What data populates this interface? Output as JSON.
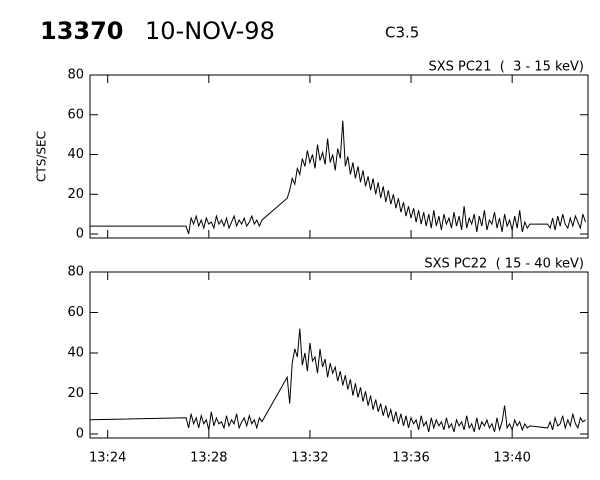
{
  "header": {
    "id": "13370",
    "date": "10-NOV-98",
    "class": "C3.5"
  },
  "chart_data": [
    {
      "type": "line",
      "title": "SXS PC21  (  3 - 15 keV)",
      "y_label": "CTS/SEC",
      "color": "#000000",
      "xlim": [
        803.3,
        823.0
      ],
      "xticks": [
        804,
        808,
        812,
        816,
        820
      ],
      "ylim": [
        -2,
        80
      ],
      "yticks": [
        0,
        20,
        40,
        60,
        80
      ],
      "x": [
        803.3,
        807.1,
        807.2,
        807.3,
        807.4,
        807.5,
        807.6,
        807.7,
        807.8,
        807.9,
        808.0,
        808.1,
        808.2,
        808.3,
        808.4,
        808.5,
        808.6,
        808.7,
        808.8,
        808.9,
        809.0,
        809.1,
        809.2,
        809.3,
        809.4,
        809.5,
        809.6,
        809.7,
        809.8,
        809.9,
        810.0,
        810.1,
        811.1,
        811.2,
        811.3,
        811.4,
        811.5,
        811.6,
        811.7,
        811.8,
        811.9,
        812.0,
        812.1,
        812.2,
        812.3,
        812.4,
        812.5,
        812.6,
        812.7,
        812.8,
        812.9,
        813.0,
        813.1,
        813.2,
        813.3,
        813.4,
        813.5,
        813.6,
        813.7,
        813.8,
        813.9,
        814.0,
        814.1,
        814.2,
        814.3,
        814.4,
        814.5,
        814.6,
        814.7,
        814.8,
        814.9,
        815.0,
        815.1,
        815.2,
        815.3,
        815.4,
        815.5,
        815.6,
        815.7,
        815.8,
        815.9,
        816.0,
        816.1,
        816.2,
        816.3,
        816.4,
        816.5,
        816.6,
        816.7,
        816.8,
        816.9,
        817.0,
        817.1,
        817.2,
        817.3,
        817.4,
        817.5,
        817.6,
        817.7,
        817.8,
        817.9,
        818.0,
        818.1,
        818.2,
        818.3,
        818.4,
        818.5,
        818.6,
        818.7,
        818.8,
        818.9,
        819.0,
        819.1,
        819.2,
        819.3,
        819.4,
        819.5,
        819.6,
        819.7,
        819.8,
        819.9,
        820.0,
        820.1,
        820.2,
        820.3,
        820.4,
        820.5,
        820.6,
        820.7,
        821.4,
        821.5,
        821.6,
        821.7,
        821.8,
        821.9,
        822.0,
        822.1,
        822.2,
        822.3,
        822.4,
        822.5,
        822.6,
        822.7,
        822.8,
        822.9
      ],
      "values": [
        4,
        4,
        0,
        8,
        5,
        9,
        4,
        7,
        3,
        8,
        5,
        6,
        3,
        9,
        5,
        7,
        4,
        8,
        3,
        6,
        9,
        4,
        7,
        5,
        8,
        4,
        6,
        9,
        5,
        7,
        4,
        7,
        18,
        22,
        28,
        25,
        33,
        30,
        38,
        34,
        42,
        36,
        40,
        33,
        45,
        37,
        41,
        35,
        48,
        36,
        40,
        32,
        43,
        38,
        57,
        34,
        39,
        30,
        36,
        28,
        34,
        26,
        32,
        24,
        29,
        22,
        28,
        20,
        26,
        18,
        24,
        16,
        22,
        15,
        20,
        13,
        18,
        11,
        16,
        9,
        14,
        8,
        13,
        6,
        12,
        5,
        11,
        4,
        10,
        3,
        12,
        4,
        9,
        2,
        10,
        5,
        8,
        3,
        11,
        4,
        9,
        2,
        14,
        3,
        8,
        5,
        10,
        1,
        9,
        4,
        12,
        2,
        7,
        5,
        11,
        3,
        8,
        1,
        10,
        4,
        7,
        2,
        9,
        3,
        12,
        1,
        6,
        3,
        5,
        5,
        3,
        8,
        2,
        9,
        4,
        10,
        5,
        3,
        8,
        4,
        9,
        6,
        3,
        10,
        6
      ]
    },
    {
      "type": "line",
      "title": "SXS PC22  ( 15 - 40 keV)",
      "color": "#000000",
      "xlim": [
        803.3,
        823.0
      ],
      "xticks": [
        {
          "value": 804,
          "label": "13:24"
        },
        {
          "value": 808,
          "label": "13:28"
        },
        {
          "value": 812,
          "label": "13:32"
        },
        {
          "value": 816,
          "label": "13:36"
        },
        {
          "value": 820,
          "label": "13:40"
        }
      ],
      "ylim": [
        -2,
        80
      ],
      "yticks": [
        0,
        20,
        40,
        60,
        80
      ],
      "x": [
        803.3,
        807.1,
        807.2,
        807.3,
        807.4,
        807.5,
        807.6,
        807.7,
        807.8,
        807.9,
        808.0,
        808.1,
        808.2,
        808.3,
        808.4,
        808.5,
        808.6,
        808.7,
        808.8,
        808.9,
        809.0,
        809.1,
        809.2,
        809.3,
        809.4,
        809.5,
        809.6,
        809.7,
        809.8,
        809.9,
        810.0,
        810.1,
        811.1,
        811.2,
        811.3,
        811.4,
        811.5,
        811.6,
        811.7,
        811.8,
        811.9,
        812.0,
        812.1,
        812.2,
        812.3,
        812.4,
        812.5,
        812.6,
        812.7,
        812.8,
        812.9,
        813.0,
        813.1,
        813.2,
        813.3,
        813.4,
        813.5,
        813.6,
        813.7,
        813.8,
        813.9,
        814.0,
        814.1,
        814.2,
        814.3,
        814.4,
        814.5,
        814.6,
        814.7,
        814.8,
        814.9,
        815.0,
        815.1,
        815.2,
        815.3,
        815.4,
        815.5,
        815.6,
        815.7,
        815.8,
        815.9,
        816.0,
        816.1,
        816.2,
        816.3,
        816.4,
        816.5,
        816.6,
        816.7,
        816.8,
        816.9,
        817.0,
        817.1,
        817.2,
        817.3,
        817.4,
        817.5,
        817.6,
        817.7,
        817.8,
        817.9,
        818.0,
        818.1,
        818.2,
        818.3,
        818.4,
        818.5,
        818.6,
        818.7,
        818.8,
        818.9,
        819.0,
        819.1,
        819.2,
        819.3,
        819.4,
        819.5,
        819.6,
        819.7,
        819.8,
        819.9,
        820.0,
        820.1,
        820.2,
        820.3,
        820.4,
        820.5,
        820.6,
        820.7,
        821.4,
        821.5,
        821.6,
        821.7,
        821.8,
        821.9,
        822.0,
        822.1,
        822.2,
        822.3,
        822.4,
        822.5,
        822.6,
        822.7,
        822.8,
        822.9
      ],
      "values": [
        7,
        8,
        3,
        10,
        5,
        8,
        3,
        9,
        5,
        7,
        2,
        11,
        4,
        8,
        5,
        6,
        3,
        9,
        4,
        7,
        5,
        10,
        3,
        6,
        8,
        4,
        9,
        5,
        7,
        3,
        8,
        6,
        28,
        15,
        35,
        42,
        38,
        52,
        34,
        40,
        31,
        45,
        36,
        38,
        30,
        42,
        33,
        37,
        28,
        35,
        30,
        33,
        26,
        31,
        24,
        29,
        22,
        27,
        19,
        25,
        18,
        23,
        16,
        21,
        14,
        19,
        12,
        17,
        11,
        15,
        9,
        14,
        8,
        12,
        6,
        11,
        5,
        10,
        4,
        9,
        3,
        8,
        5,
        7,
        2,
        9,
        4,
        6,
        1,
        8,
        3,
        7,
        4,
        6,
        2,
        8,
        3,
        5,
        1,
        7,
        4,
        6,
        2,
        9,
        3,
        5,
        1,
        8,
        2,
        6,
        4,
        7,
        3,
        5,
        1,
        8,
        2,
        6,
        14,
        3,
        5,
        2,
        7,
        4,
        6,
        2,
        5,
        3,
        4,
        3,
        6,
        2,
        8,
        4,
        5,
        9,
        3,
        7,
        4,
        10,
        5,
        3,
        8,
        6,
        7
      ]
    }
  ]
}
